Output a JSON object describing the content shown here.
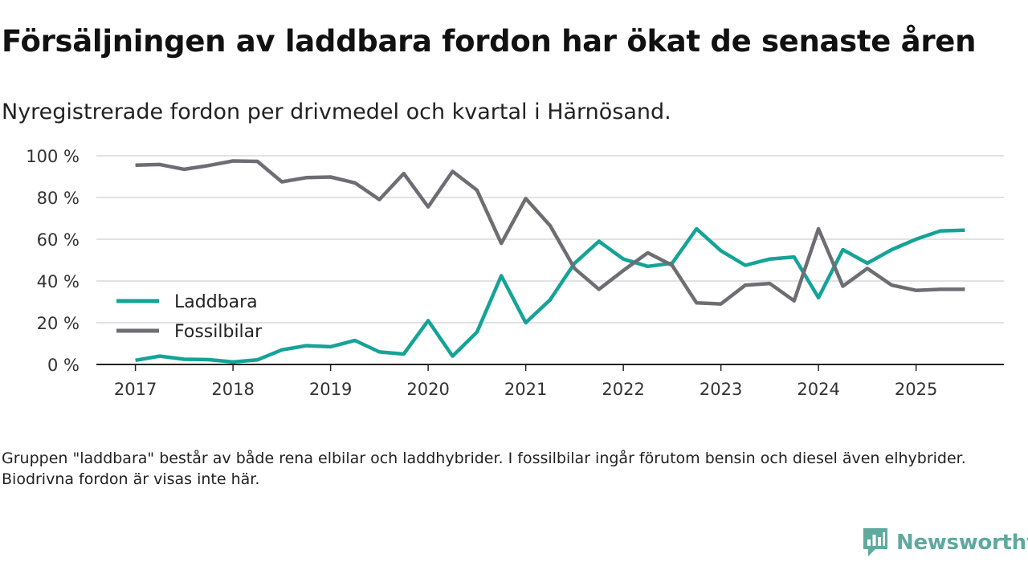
{
  "header": {
    "title": "Försäljningen av laddbara fordon har ökat de senaste åren",
    "subtitle": "Nyregistrerade fordon per drivmedel och kvartal i Härnösand."
  },
  "footnote": "Gruppen \"laddbara\" består av både rena elbilar och laddhybrider. I fossilbilar ingår förutom bensin och diesel även elhybrider. Biodrivna fordon är visas inte här.",
  "brand": {
    "name": "Newsworthy",
    "icon": "newsworthy-logo-icon",
    "color": "#5fa99f"
  },
  "chart_data": {
    "type": "line",
    "title": "Försäljningen av laddbara fordon har ökat de senaste åren",
    "subtitle": "Nyregistrerade fordon per drivmedel och kvartal i Härnösand.",
    "xlabel": "",
    "ylabel": "",
    "x": [
      2017.0,
      2017.25,
      2017.5,
      2017.75,
      2018.0,
      2018.25,
      2018.5,
      2018.75,
      2019.0,
      2019.25,
      2019.5,
      2019.75,
      2020.0,
      2020.25,
      2020.5,
      2020.75,
      2021.0,
      2021.25,
      2021.5,
      2021.75,
      2022.0,
      2022.25,
      2022.5,
      2022.75,
      2023.0,
      2023.25,
      2023.5,
      2023.75,
      2024.0,
      2024.25,
      2024.5,
      2024.75,
      2025.0,
      2025.25,
      2025.5
    ],
    "xlim": [
      2016.6,
      2025.9
    ],
    "ylim": [
      0,
      100
    ],
    "x_ticks": [
      2017,
      2018,
      2019,
      2020,
      2021,
      2022,
      2023,
      2024,
      2025
    ],
    "x_tick_labels": [
      "2017",
      "2018",
      "2019",
      "2020",
      "2021",
      "2022",
      "2023",
      "2024",
      "2025"
    ],
    "y_ticks": [
      0,
      20,
      40,
      60,
      80,
      100
    ],
    "y_tick_labels": [
      "0 %",
      "20 %",
      "40 %",
      "60 %",
      "80 %",
      "100 %"
    ],
    "grid": "horizontal",
    "legend_position": "left",
    "series": [
      {
        "name": "Laddbara",
        "color": "#15a397",
        "values": [
          2,
          4,
          2.5,
          2.3,
          1.2,
          2.2,
          7,
          9,
          8.5,
          11.5,
          6,
          5,
          21,
          4,
          15.5,
          42.5,
          20,
          31,
          48.5,
          59,
          50.5,
          47,
          48.5,
          65,
          54.5,
          47.5,
          50.5,
          51.5,
          32,
          55,
          48.5,
          55,
          60,
          64,
          64.3
        ]
      },
      {
        "name": "Fossilbilar",
        "color": "#6e6d73",
        "values": [
          95.5,
          95.8,
          93.5,
          95.3,
          97.5,
          97.3,
          87.5,
          89.5,
          89.8,
          87,
          79,
          91.5,
          75.5,
          92.5,
          83.5,
          58,
          79.5,
          66.5,
          46,
          36,
          45,
          53.5,
          47.5,
          29.5,
          29,
          38,
          38.8,
          30.5,
          65,
          37.5,
          46,
          38,
          35.5,
          36,
          36
        ]
      }
    ]
  }
}
